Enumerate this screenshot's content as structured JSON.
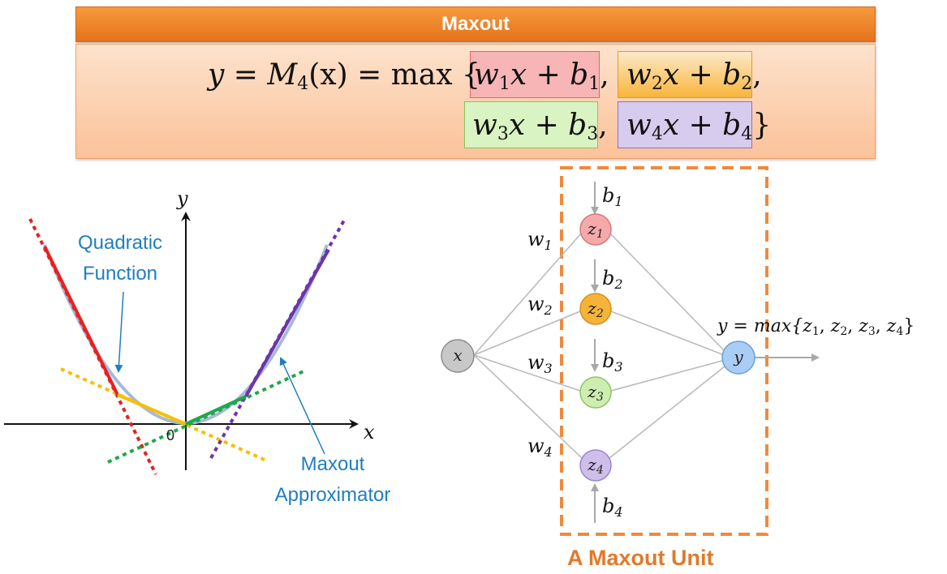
{
  "header": {
    "title": "Maxout"
  },
  "formula": {
    "lhs": "y = M",
    "lhs_sub": "4",
    "lhs_rest": "(x) = max {",
    "terms": [
      {
        "w": "w",
        "w_sub": "1",
        "mid": "x + b",
        "b_sub": "1",
        "after": ", ",
        "color": "#f7b5b5"
      },
      {
        "w": "w",
        "w_sub": "2",
        "mid": "x + b",
        "b_sub": "2",
        "after": ",",
        "color": "#f8b53b"
      },
      {
        "w": "w",
        "w_sub": "3",
        "mid": "x + b",
        "b_sub": "3",
        "after": ", ",
        "color": "#d9f3c2"
      },
      {
        "w": "w",
        "w_sub": "4",
        "mid": "x + b",
        "b_sub": "4",
        "after": "}",
        "color": "#d7cbee"
      }
    ]
  },
  "plot": {
    "y_axis_label": "y",
    "x_axis_label": "x",
    "origin_label": "0",
    "quadratic_label": "Quadratic\nFunction",
    "maxout_label": "Maxout\nApproximator"
  },
  "network": {
    "input": {
      "name": "x",
      "color": "#c8c8c8"
    },
    "hidden": [
      {
        "name": "z",
        "sub": "1",
        "color": "#f5a9a9",
        "weight": "w",
        "weight_sub": "1",
        "bias": "b",
        "bias_sub": "1"
      },
      {
        "name": "z",
        "sub": "2",
        "color": "#f6b33a",
        "weight": "w",
        "weight_sub": "2",
        "bias": "b",
        "bias_sub": "2"
      },
      {
        "name": "z",
        "sub": "3",
        "color": "#cdeeb0",
        "weight": "w",
        "weight_sub": "3",
        "bias": "b",
        "bias_sub": "3"
      },
      {
        "name": "z",
        "sub": "4",
        "color": "#cdbfe9",
        "weight": "w",
        "weight_sub": "4",
        "bias": "b",
        "bias_sub": "4"
      }
    ],
    "output": {
      "name": "y",
      "color": "#a9cdf4"
    },
    "output_equation": "y = max{",
    "output_terms": [
      "z",
      "z",
      "z",
      "z"
    ],
    "output_subs": [
      "1",
      "2",
      "3",
      "4"
    ],
    "unit_title": "A Maxout Unit"
  },
  "colors": {
    "accent_orange": "#e5731c",
    "red_line": "#e82020",
    "yellow_line": "#f5c000",
    "green_line": "#1fa84a",
    "purple_line": "#6a36a8",
    "quadratic": "#a8b8d8",
    "label_blue": "#1f7ec0"
  }
}
